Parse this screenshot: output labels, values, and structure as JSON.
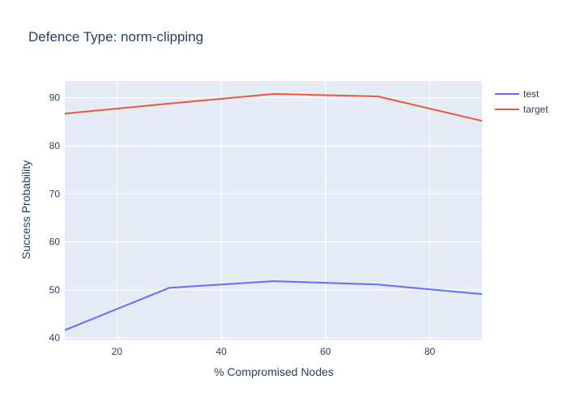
{
  "chart_data": {
    "type": "line",
    "title": "Defence Type: norm-clipping",
    "xlabel": "% Compromised Nodes",
    "ylabel": "Success Probability",
    "x": [
      10,
      30,
      50,
      70,
      90
    ],
    "xlim": [
      10,
      90
    ],
    "ylim": [
      39.5,
      93.5
    ],
    "xticks": [
      20,
      40,
      60,
      80
    ],
    "yticks": [
      40,
      50,
      60,
      70,
      80,
      90
    ],
    "grid": true,
    "legend_position": "top-right",
    "series": [
      {
        "name": "test",
        "color": "#636efa",
        "values": [
          41.6,
          50.4,
          51.8,
          51.1,
          49.1
        ]
      },
      {
        "name": "target",
        "color": "#ef553b",
        "values": [
          86.7,
          88.8,
          90.8,
          90.3,
          85.2
        ]
      }
    ],
    "plot_background": "#e5ecf6",
    "grid_color": "#ffffff"
  }
}
